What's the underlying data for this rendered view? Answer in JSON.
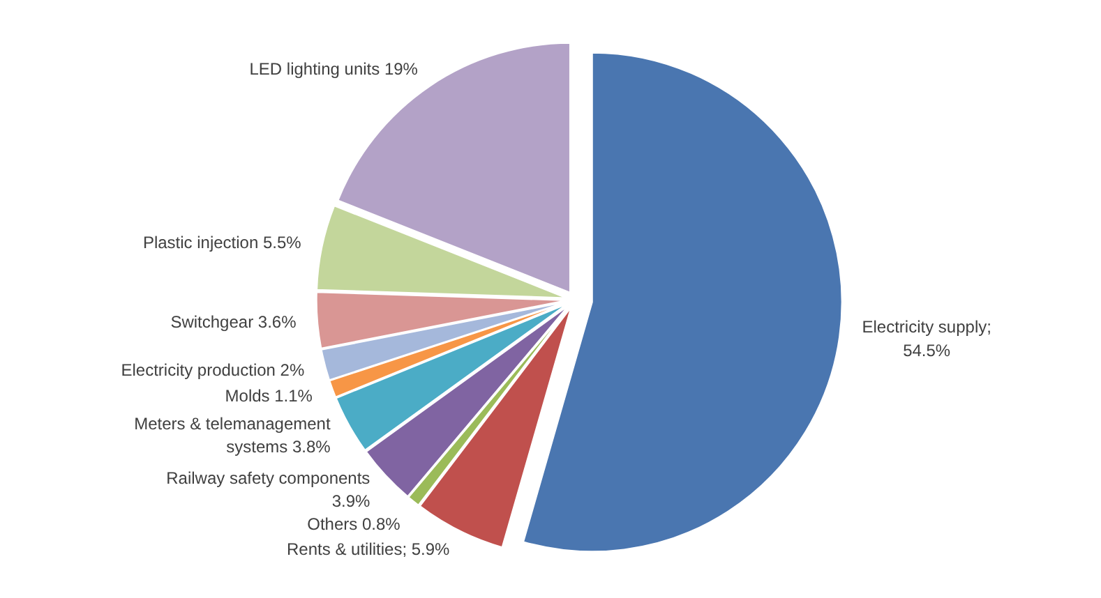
{
  "chart_data": {
    "type": "pie",
    "categories": [
      "Electricity supply;\n54.5%",
      "Rents & utilities; 5.9%",
      "Others 0.8%",
      "Railway safety components\n3.9%",
      "Meters & telemanagement\nsystems 3.8%",
      "Molds 1.1%",
      "Electricity production 2%",
      "Switchgear 3.6%",
      "Plastic injection 5.5%",
      "LED lighting units 19%"
    ],
    "values": [
      54.5,
      5.9,
      0.8,
      3.9,
      3.8,
      1.1,
      2,
      3.6,
      5.5,
      19
    ],
    "colors": [
      "#4a76b0",
      "#c0504d",
      "#9bbb59",
      "#8064a2",
      "#4bacc6",
      "#f79646",
      "#a5b8db",
      "#d99694",
      "#c3d69b",
      "#b3a2c7"
    ]
  }
}
